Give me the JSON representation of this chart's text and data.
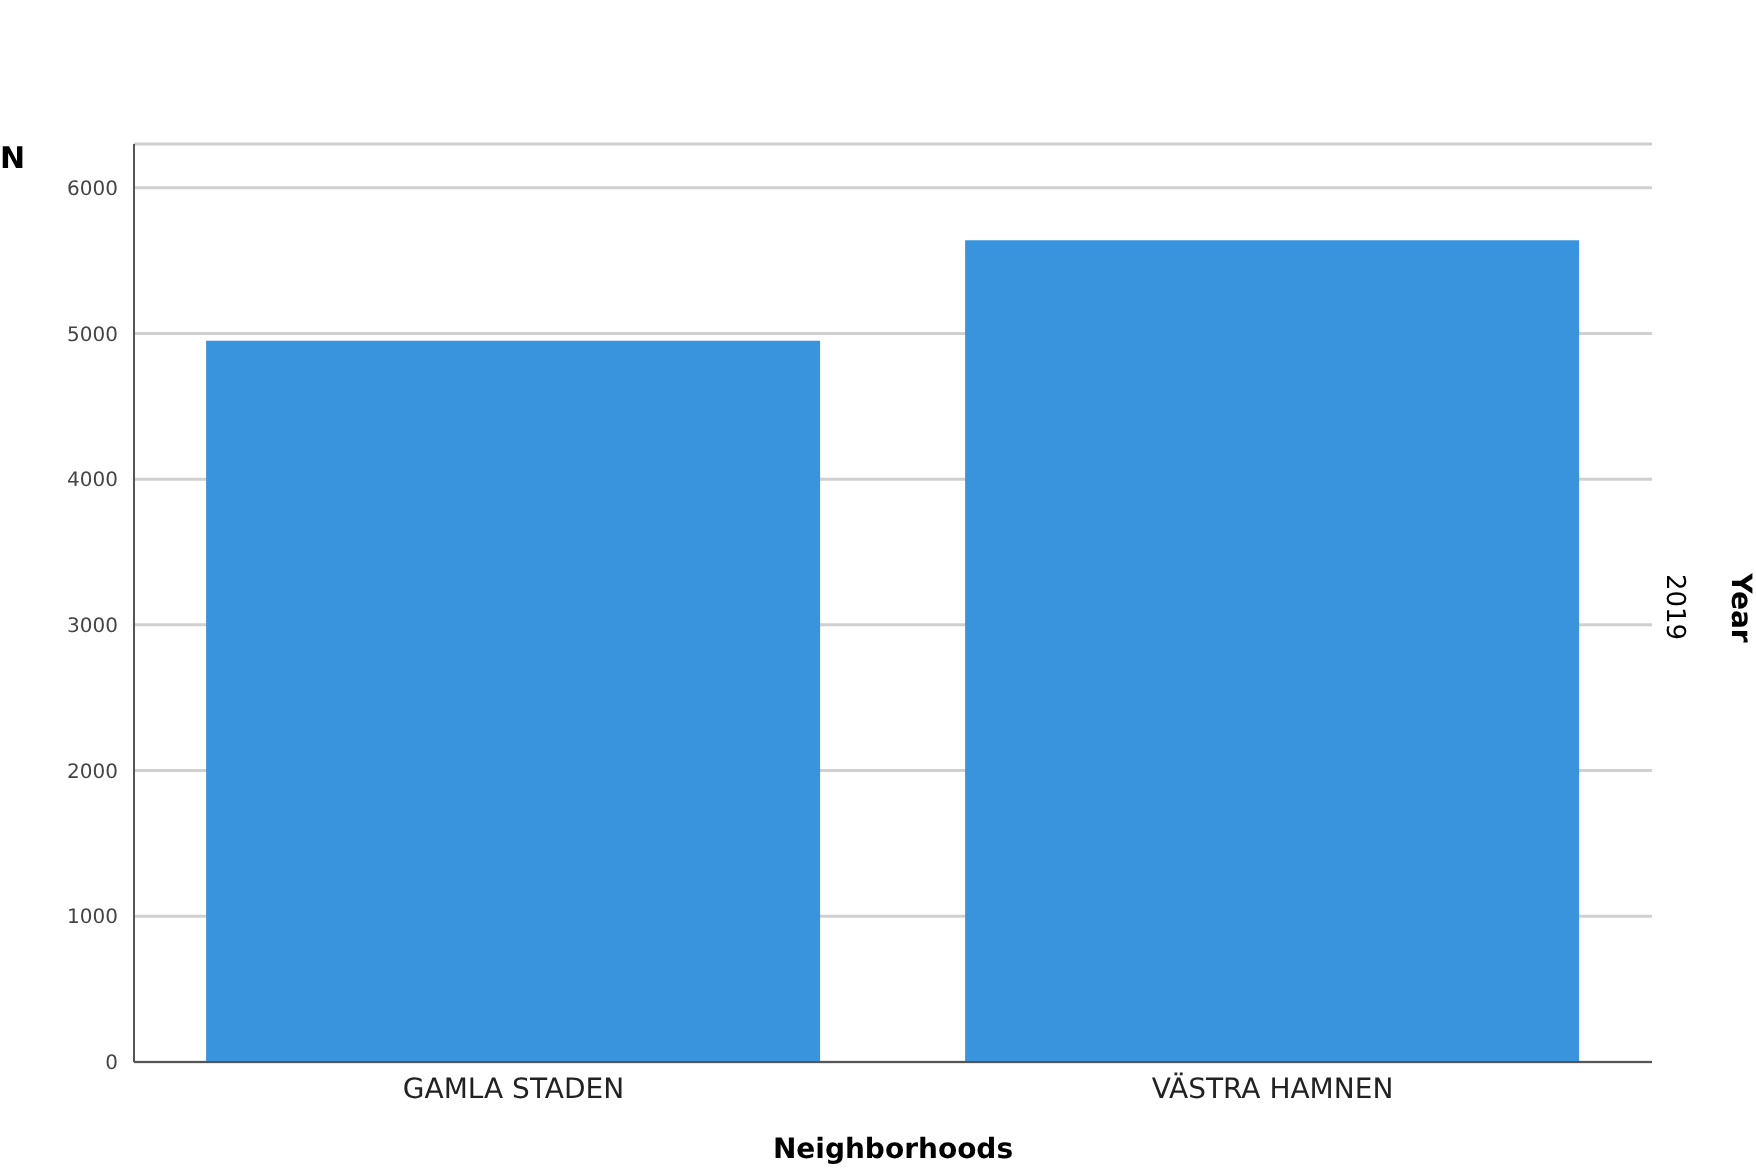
{
  "chart_data": {
    "type": "bar",
    "xlabel": "Neighborhoods",
    "ylabel": "N",
    "legend_title": "Year",
    "annotations": [
      "2019"
    ],
    "categories": [
      "GAMLA STADEN",
      "VÄSTRA HAMNEN"
    ],
    "values": [
      4950,
      5640
    ],
    "color": "#3994dd",
    "ylim": [
      0,
      6300
    ],
    "yticks": [
      0,
      1000,
      2000,
      3000,
      4000,
      5000,
      6000
    ],
    "grid": "y"
  }
}
